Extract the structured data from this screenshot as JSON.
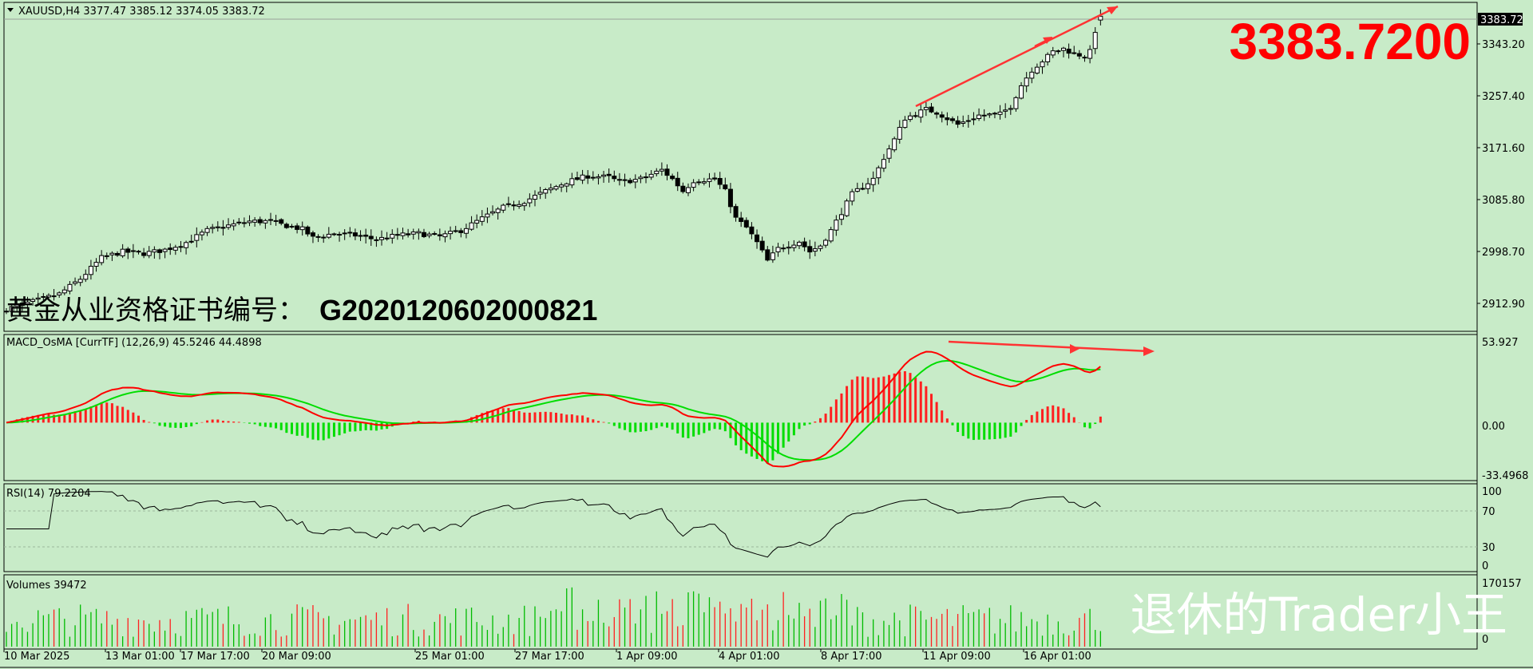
{
  "price_pane": {
    "header": "XAUUSD,H4  3377.47 3385.12 3374.05 3383.72",
    "last_price_label": "3383.72",
    "big_price": "3383.7200",
    "certificate_label": "黄金从业资格证书编号：",
    "certificate_code": "G2020120602000821"
  },
  "macd_pane": {
    "header": "MACD_OsMA [CurrTF] (12,26,9) 45.5246 44.4898"
  },
  "rsi_pane": {
    "header": "RSI(14) 79.2204"
  },
  "volume_pane": {
    "header": "Volumes 39472"
  },
  "watermark": "退休的Trader小王",
  "colors": {
    "bg": "#c8ebc8",
    "up": "#ff0000",
    "down": "#00dd00",
    "signal": "#00dd00",
    "macd": "#ff0000",
    "arrow": "#ff3333"
  },
  "chart_data": [
    {
      "type": "candlestick",
      "symbol": "XAUUSD",
      "timeframe": "H4",
      "ohlc_last": {
        "open": 3377.47,
        "high": 3385.12,
        "low": 3374.05,
        "close": 3383.72
      },
      "ylim": [
        2870,
        3400
      ],
      "y_ticks": [
        "3343.20",
        "3257.40",
        "3171.60",
        "3085.80",
        "2998.70",
        "2912.90"
      ],
      "x_ticks": [
        "10 Mar 2025",
        "13 Mar 01:00",
        "17 Mar 17:00",
        "20 Mar 09:00",
        "25 Mar 01:00",
        "27 Mar 17:00",
        "1 Apr 09:00",
        "4 Apr 01:00",
        "8 Apr 17:00",
        "11 Apr 09:00",
        "16 Apr 01:00"
      ],
      "close_path": [
        [
          0,
          2900
        ],
        [
          6,
          2915
        ],
        [
          10,
          2925
        ],
        [
          14,
          2950
        ],
        [
          18,
          2985
        ],
        [
          22,
          2995
        ],
        [
          26,
          2992
        ],
        [
          30,
          2998
        ],
        [
          34,
          3010
        ],
        [
          38,
          3030
        ],
        [
          42,
          3038
        ],
        [
          46,
          3045
        ],
        [
          50,
          3045
        ],
        [
          52,
          3040
        ],
        [
          56,
          3032
        ],
        [
          58,
          3018
        ],
        [
          62,
          3025
        ],
        [
          66,
          3022
        ],
        [
          70,
          3015
        ],
        [
          74,
          3022
        ],
        [
          78,
          3025
        ],
        [
          82,
          3020
        ],
        [
          86,
          3030
        ],
        [
          90,
          3050
        ],
        [
          94,
          3068
        ],
        [
          98,
          3078
        ],
        [
          102,
          3095
        ],
        [
          106,
          3110
        ],
        [
          110,
          3120
        ],
        [
          114,
          3118
        ],
        [
          116,
          3110
        ],
        [
          120,
          3115
        ],
        [
          124,
          3130
        ],
        [
          126,
          3115
        ],
        [
          128,
          3095
        ],
        [
          130,
          3112
        ],
        [
          134,
          3115
        ],
        [
          136,
          3095
        ],
        [
          138,
          3050
        ],
        [
          140,
          3035
        ],
        [
          142,
          3010
        ],
        [
          144,
          2980
        ],
        [
          146,
          3000
        ],
        [
          150,
          3012
        ],
        [
          152,
          2995
        ],
        [
          154,
          3005
        ],
        [
          156,
          3030
        ],
        [
          158,
          3060
        ],
        [
          160,
          3090
        ],
        [
          164,
          3115
        ],
        [
          166,
          3150
        ],
        [
          168,
          3180
        ],
        [
          170,
          3215
        ],
        [
          174,
          3230
        ],
        [
          176,
          3225
        ],
        [
          180,
          3205
        ],
        [
          184,
          3220
        ],
        [
          188,
          3222
        ],
        [
          190,
          3235
        ],
        [
          192,
          3270
        ],
        [
          194,
          3295
        ],
        [
          196,
          3310
        ],
        [
          198,
          3325
        ],
        [
          200,
          3330
        ],
        [
          202,
          3322
        ],
        [
          204,
          3318
        ],
        [
          205,
          3325
        ],
        [
          206,
          3360
        ],
        [
          207,
          3383.72
        ]
      ]
    },
    {
      "type": "bar",
      "name": "MACD_OsMA",
      "params": [
        12,
        26,
        9
      ],
      "values": {
        "macd": 45.5246,
        "signal": 44.4898
      },
      "ylim": [
        -33.4968,
        53.927
      ],
      "y_ticks": [
        "53.927",
        "0.00",
        "-33.4968"
      ]
    },
    {
      "type": "line",
      "name": "RSI(14)",
      "value": 79.2204,
      "ylim": [
        0,
        100
      ],
      "y_ticks": [
        "100",
        "70",
        "30",
        "0"
      ]
    },
    {
      "type": "bar",
      "name": "Volumes",
      "value": 39472,
      "ylim": [
        0,
        170157
      ],
      "y_ticks": [
        "170157",
        "0"
      ]
    }
  ]
}
